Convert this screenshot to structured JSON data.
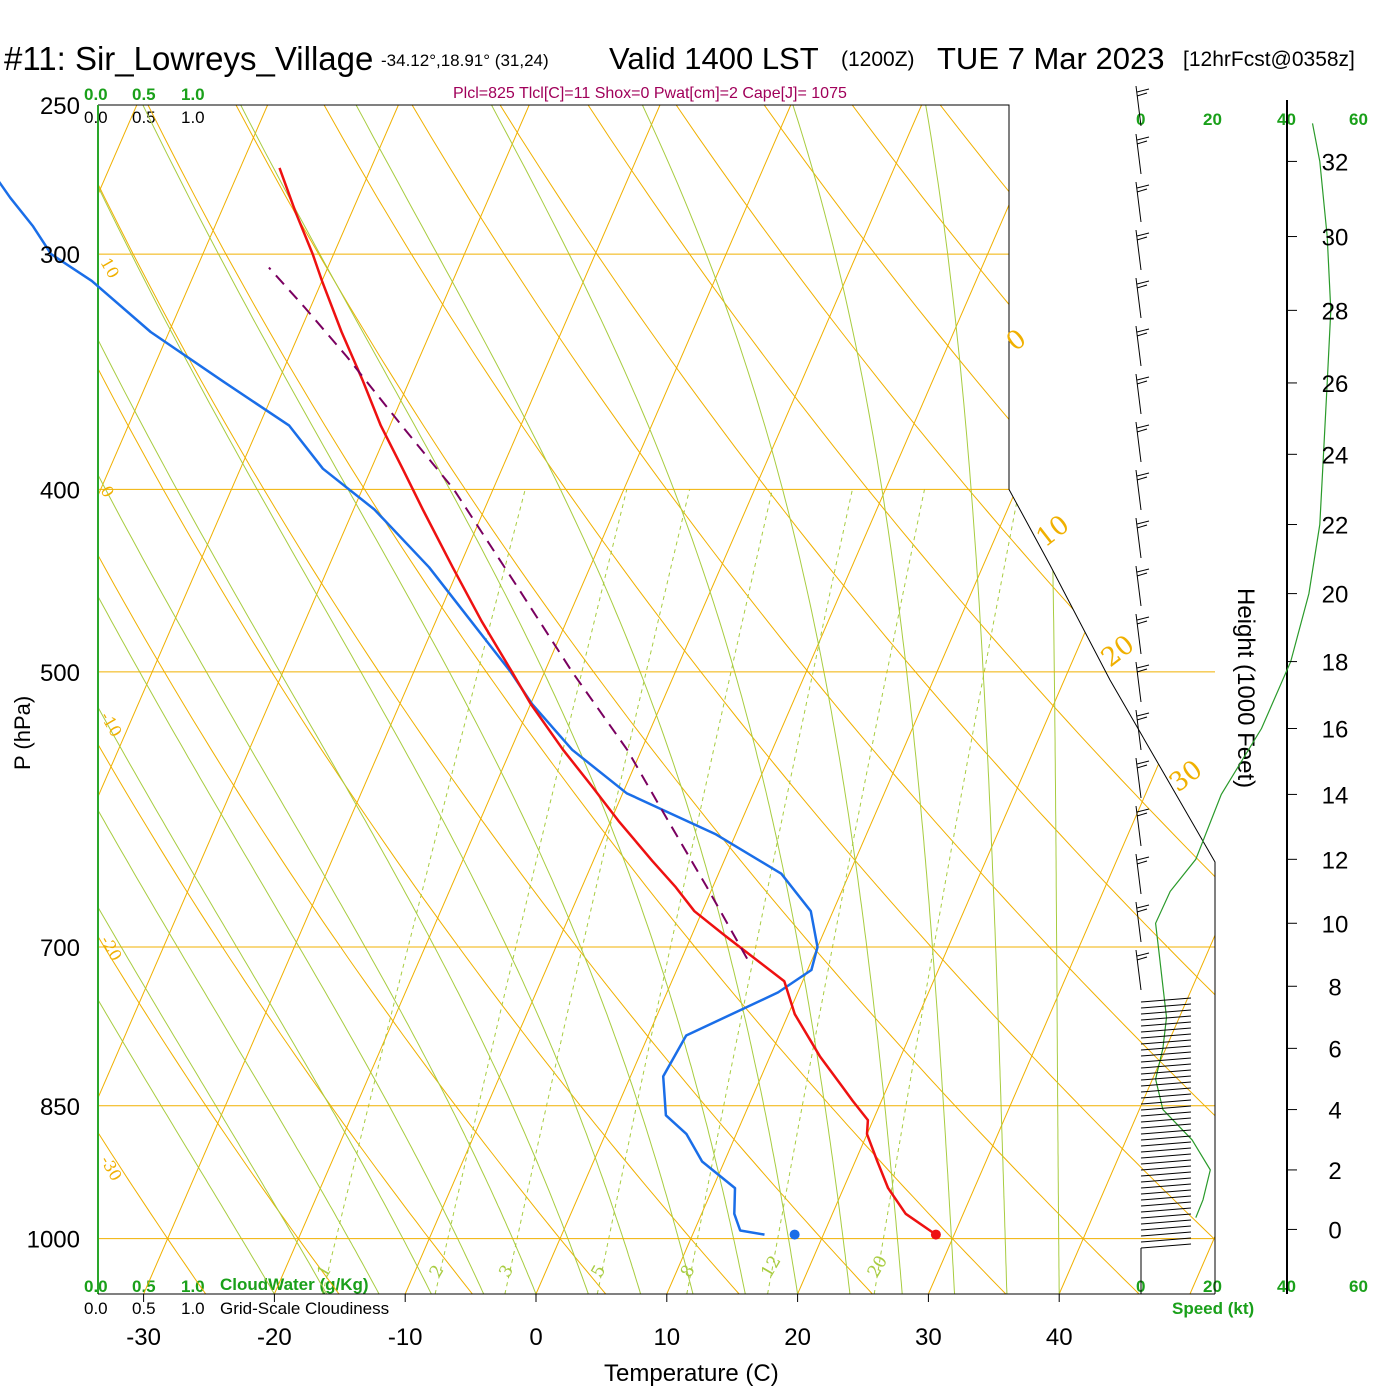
{
  "header": {
    "station": "#11: Sir_Lowreys_Village",
    "coords": "-34.12°,18.91° (31,24)",
    "valid": "Valid 1400 LST",
    "utc": "(1200Z)",
    "date": "TUE 7 Mar 2023",
    "forecast": "[12hrFcst@0358z]"
  },
  "indices": "Plcl=825 Tlcl[C]=11 Shox=0 Pwat[cm]=2 Cape[J]= 1075",
  "scales": {
    "cloud_top_green": [
      "0.0",
      "0.5",
      "1.0"
    ],
    "cloud_top_black": [
      "0.0",
      "0.5",
      "1.0"
    ],
    "cloud_bottom_green": [
      "0.0",
      "0.5",
      "1.0"
    ],
    "cloud_bottom_black": [
      "0.0",
      "0.5",
      "1.0"
    ],
    "cloudwater_label": "CloudWater (g/Kg)",
    "cloudiness_label": "Grid-Scale Cloudiness",
    "speed_top": [
      "0",
      "20",
      "40",
      "60"
    ],
    "speed_bottom": [
      "0",
      "20",
      "40",
      "60"
    ],
    "speed_label": "Speed (kt)"
  },
  "colors": {
    "temperature": "#ee1111",
    "dewpoint": "#1a6ee8",
    "parcel": "#7a0060",
    "isobar": "#f0b000",
    "mixing_ratio": "#a8cc40",
    "wind_speed": "#2a9a2a",
    "indices": "#a0005a",
    "cloud_axis": "#1aa01a"
  },
  "chart_data": {
    "type": "skew-t",
    "xlabel": "Temperature (C)",
    "ylabel": "P (hPa)",
    "y2label": "Height (1000 Feet)",
    "x_ticks": [
      -30,
      -20,
      -10,
      0,
      10,
      20,
      30,
      40
    ],
    "p_ticks": [
      250,
      300,
      400,
      500,
      700,
      850,
      1000
    ],
    "p_range": [
      1070,
      250
    ],
    "height_ticks_kft": [
      0,
      2,
      4,
      6,
      8,
      10,
      12,
      14,
      16,
      18,
      20,
      22,
      24,
      26,
      28,
      30,
      32
    ],
    "isotherm_labels": [
      10,
      0,
      -10,
      -20,
      -30
    ],
    "isotherm_labels_right": [
      0,
      10,
      20,
      30
    ],
    "mixing_ratio_labels": [
      "1",
      "2",
      "3",
      "5",
      "8",
      "12",
      "20"
    ],
    "mixing_ratio_values": [
      1,
      2,
      3,
      5,
      8,
      12,
      20
    ],
    "temperature": {
      "p": [
        995,
        970,
        940,
        910,
        880,
        865,
        845,
        830,
        800,
        760,
        730,
        710,
        690,
        670,
        650,
        630,
        600,
        575,
        550,
        520,
        500,
        470,
        440,
        410,
        390,
        370,
        350,
        330,
        310,
        300,
        285,
        270
      ],
      "t": [
        28.6,
        25.6,
        23.4,
        21.7,
        20.0,
        19.6,
        17.8,
        16.5,
        13.8,
        10.5,
        8.6,
        5.6,
        2.5,
        -0.6,
        -2.9,
        -5.5,
        -9.4,
        -12.6,
        -16.0,
        -20.0,
        -22.5,
        -26.5,
        -30.5,
        -34.7,
        -37.6,
        -40.7,
        -43.6,
        -46.8,
        -50.0,
        -51.6,
        -54.3,
        -57.0
      ]
    },
    "dewpoint": {
      "p": [
        995,
        990,
        970,
        940,
        910,
        880,
        860,
        820,
        780,
        740,
        720,
        700,
        670,
        640,
        610,
        580,
        550,
        520,
        500,
        470,
        440,
        410,
        390,
        370,
        350,
        330,
        310,
        300,
        290,
        280,
        265
      ],
      "td": [
        15.5,
        13.5,
        12.5,
        11.7,
        8.3,
        6.2,
        4.0,
        2.5,
        2.9,
        8.5,
        10.3,
        10.0,
        8.3,
        4.8,
        -1.5,
        -9.7,
        -15.3,
        -19.9,
        -22.6,
        -27.3,
        -32.3,
        -38.4,
        -43.7,
        -47.7,
        -54.4,
        -61.4,
        -67.6,
        -71.6,
        -73.9,
        -76.6,
        -80.5
      ]
    },
    "parcel": {
      "p": [
        710,
        650,
        600,
        550,
        500,
        450,
        400,
        370,
        340,
        320,
        305
      ],
      "t": [
        5.0,
        -0.5,
        -5.6,
        -11.1,
        -17.9,
        -25.0,
        -33.0,
        -39.1,
        -45.6,
        -50.5,
        -54.5
      ]
    },
    "surface_temperature_marker": 28.6,
    "surface_dewpoint_marker": 17.8,
    "wind_speed_profile": {
      "height_kft": [
        0.4,
        1,
        2,
        3,
        4,
        5,
        6,
        7,
        8,
        9,
        10,
        11,
        12,
        14,
        16,
        18,
        20,
        22,
        24,
        26,
        28,
        30,
        32,
        33
      ],
      "speed_kt": [
        15,
        17,
        19,
        14,
        6,
        4,
        6,
        7,
        6,
        5,
        4,
        8,
        15,
        22,
        33,
        41,
        46,
        49,
        50,
        51,
        52,
        51,
        49,
        47
      ]
    }
  }
}
